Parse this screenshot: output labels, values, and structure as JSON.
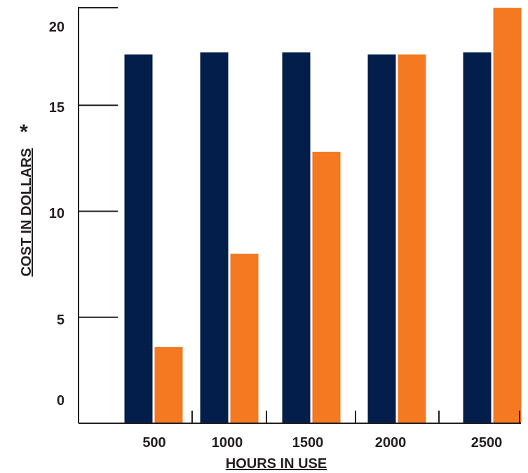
{
  "chart_data": {
    "type": "bar",
    "title": "",
    "xlabel": "HOURS IN USE",
    "ylabel": "COST IN DOLLARS",
    "ylabel_mark": "*",
    "categories": [
      "500",
      "1000",
      "1500",
      "2000",
      "2500"
    ],
    "series": [
      {
        "color": "#041e4b",
        "values": [
          17.4,
          17.5,
          17.5,
          17.4,
          17.5
        ]
      },
      {
        "color": "#f47920",
        "values": [
          3.6,
          8.0,
          12.8,
          17.4,
          19.6
        ]
      }
    ],
    "yticks": [
      0,
      5,
      10,
      15,
      20
    ],
    "ylim": [
      0,
      21
    ],
    "grid": false,
    "legend": "none"
  }
}
